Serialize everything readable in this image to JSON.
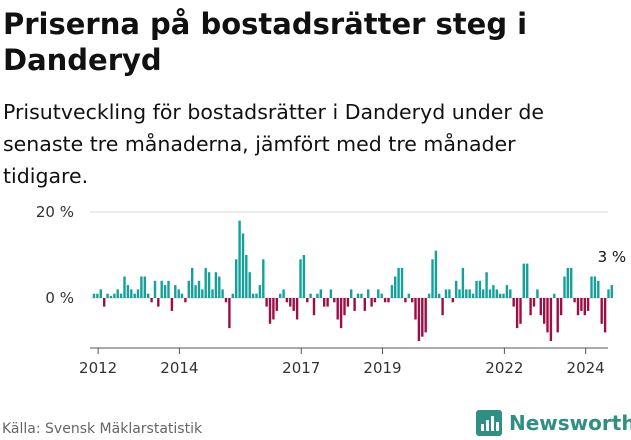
{
  "title": "Priserna på bostadsrätter steg i Danderyd",
  "subtitle": "Prisutveckling för bostadsrätter i Danderyd under de senaste tre månaderna, jämfört med tre månader tidigare.",
  "source": "Källa: Svensk Mäklarstatistik",
  "brand": "Newsworthy",
  "colors": {
    "positive": "#14a19a",
    "negative": "#9c0e46",
    "grid": "#d9d9d9",
    "axis": "#555555",
    "brand": "#2f8f83"
  },
  "chart_data": {
    "type": "bar",
    "title": "",
    "xlabel": "",
    "ylabel": "",
    "ylim": [
      -12,
      21
    ],
    "y_ticks": [
      0,
      20
    ],
    "y_tick_labels": [
      "0 %",
      "20 %"
    ],
    "x_ticks": [
      2012,
      2014,
      2017,
      2019,
      2022,
      2024
    ],
    "x_tick_labels": [
      "2012",
      "2014",
      "2017",
      "2019",
      "2022",
      "2024"
    ],
    "x_range": [
      2011.8,
      2024.55
    ],
    "x_start": 2011.9,
    "x_step": 0.0833,
    "values": [
      1,
      1,
      2,
      -2,
      1,
      0.5,
      1,
      2,
      1,
      5,
      3,
      2,
      1,
      2,
      5,
      5,
      1,
      -1,
      4,
      -2,
      4,
      3,
      4,
      -3,
      3,
      2,
      1,
      -1,
      4,
      7,
      3,
      4,
      2,
      7,
      6,
      2,
      6,
      5,
      2,
      -1,
      -7,
      1,
      9,
      18,
      15,
      10,
      6,
      1,
      1,
      3,
      9,
      -2,
      -6,
      -5,
      -3,
      1,
      2,
      -1,
      -2,
      -3,
      -5,
      9,
      10,
      -1,
      1,
      -4,
      1,
      2,
      -2,
      -2,
      2,
      -1,
      -5,
      -7,
      -4,
      -2,
      2,
      -3,
      1,
      1,
      -3,
      2,
      -2,
      -1,
      2,
      1,
      -1,
      -1,
      3,
      5,
      7,
      7,
      -1,
      1,
      -1,
      -5,
      -10,
      -9,
      -8,
      1,
      9,
      11,
      1,
      -4,
      2,
      2,
      -1,
      4,
      2,
      7,
      2,
      2,
      1,
      4,
      4,
      2,
      6,
      2,
      3,
      2,
      1,
      1,
      3,
      2,
      -2,
      -7,
      -6,
      8,
      8,
      -4,
      -2,
      2,
      -4,
      -6,
      -8,
      -10,
      1,
      -8,
      -4,
      5,
      7,
      7,
      -1,
      -4,
      -3,
      -4,
      -3,
      5,
      5,
      4,
      -6,
      -8,
      2,
      3
    ],
    "annotation": "3 %"
  }
}
